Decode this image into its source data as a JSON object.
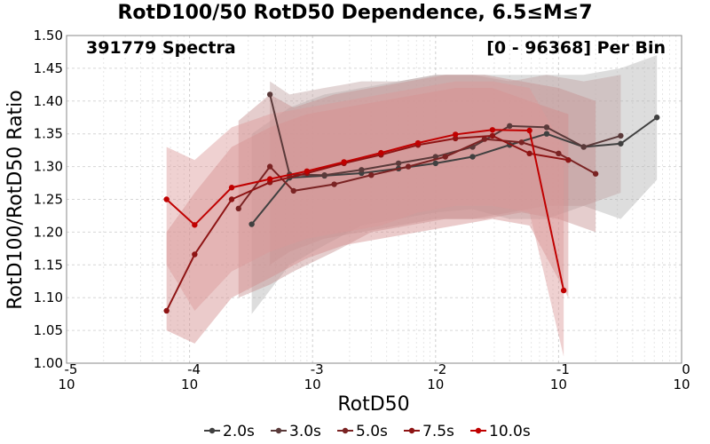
{
  "chart_data": {
    "type": "line",
    "title": "RotD100/50 RotD50 Dependence, 6.5≤M≤7",
    "xlabel": "RotD50",
    "ylabel": "RotD100/RotD50 Ratio",
    "x_scale": "log",
    "xlim": [
      1e-05,
      1
    ],
    "ylim": [
      1.0,
      1.5
    ],
    "y_ticks": [
      "1.00",
      "1.05",
      "1.10",
      "1.15",
      "1.20",
      "1.25",
      "1.30",
      "1.35",
      "1.40",
      "1.45",
      "1.50"
    ],
    "x_ticks": [
      {
        "value": 1e-05,
        "base": "10",
        "exp": "-5"
      },
      {
        "value": 0.0001,
        "base": "10",
        "exp": "-4"
      },
      {
        "value": 0.001,
        "base": "10",
        "exp": "-3"
      },
      {
        "value": 0.01,
        "base": "10",
        "exp": "-2"
      },
      {
        "value": 0.1,
        "base": "10",
        "exp": "-1"
      },
      {
        "value": 1,
        "base": "10",
        "exp": "0"
      }
    ],
    "grid": true,
    "legend_position": "bottom",
    "annotations": {
      "left": "391779 Spectra",
      "right": "[0 - 96368] Per Bin"
    },
    "series": [
      {
        "name": "2.0s",
        "color": "#404040",
        "band_color": "#b4b4b4",
        "x": [
          0.00032,
          0.00065,
          0.00125,
          0.0025,
          0.005,
          0.01,
          0.02,
          0.04,
          0.08,
          0.16,
          0.32,
          0.63
        ],
        "y": [
          1.212,
          1.283,
          1.286,
          1.29,
          1.297,
          1.305,
          1.315,
          1.333,
          1.35,
          1.33,
          1.335,
          1.375
        ],
        "lower": [
          1.075,
          1.15,
          1.18,
          1.21,
          1.22,
          1.23,
          1.235,
          1.22,
          1.22,
          1.24,
          1.22,
          1.28
        ],
        "upper": [
          1.35,
          1.39,
          1.41,
          1.42,
          1.43,
          1.44,
          1.44,
          1.44,
          1.44,
          1.44,
          1.45,
          1.47
        ]
      },
      {
        "name": "3.0s",
        "color": "#5a3a3a",
        "band_color": "#c0a4a4",
        "x": [
          0.00045,
          0.00065,
          0.00125,
          0.0025,
          0.005,
          0.01,
          0.02,
          0.04,
          0.08,
          0.16,
          0.32
        ],
        "y": [
          1.41,
          1.288,
          1.287,
          1.295,
          1.305,
          1.315,
          1.33,
          1.362,
          1.36,
          1.33,
          1.347
        ],
        "lower": [
          1.15,
          1.17,
          1.19,
          1.2,
          1.21,
          1.22,
          1.22,
          1.23,
          1.24,
          1.24,
          1.26
        ],
        "upper": [
          1.43,
          1.41,
          1.42,
          1.43,
          1.43,
          1.44,
          1.44,
          1.43,
          1.44,
          1.43,
          1.44
        ]
      },
      {
        "name": "5.0s",
        "color": "#7a2323",
        "band_color": "#c69090",
        "x": [
          0.00025,
          0.00045,
          0.0007,
          0.0015,
          0.003,
          0.006,
          0.012,
          0.025,
          0.05,
          0.1,
          0.2
        ],
        "y": [
          1.236,
          1.3,
          1.263,
          1.273,
          1.287,
          1.3,
          1.315,
          1.342,
          1.337,
          1.32,
          1.289
        ],
        "lower": [
          1.1,
          1.12,
          1.14,
          1.17,
          1.2,
          1.21,
          1.22,
          1.22,
          1.23,
          1.22,
          1.2
        ],
        "upper": [
          1.37,
          1.41,
          1.39,
          1.41,
          1.42,
          1.43,
          1.44,
          1.44,
          1.43,
          1.42,
          1.4
        ]
      },
      {
        "name": "7.5s",
        "color": "#8e1414",
        "band_color": "#d28c8c",
        "x": [
          6.5e-05,
          0.00011,
          0.00022,
          0.00045,
          0.0009,
          0.0018,
          0.0036,
          0.0072,
          0.0145,
          0.029,
          0.058,
          0.12
        ],
        "y": [
          1.08,
          1.166,
          1.25,
          1.276,
          1.29,
          1.305,
          1.318,
          1.333,
          1.343,
          1.347,
          1.32,
          1.31
        ],
        "lower": [
          1.05,
          1.03,
          1.1,
          1.13,
          1.16,
          1.18,
          1.19,
          1.2,
          1.21,
          1.22,
          1.21,
          1.1
        ],
        "upper": [
          1.2,
          1.26,
          1.33,
          1.36,
          1.38,
          1.39,
          1.4,
          1.41,
          1.42,
          1.42,
          1.4,
          1.38
        ]
      },
      {
        "name": "10.0s",
        "color": "#c00000",
        "band_color": "#dc9999",
        "x": [
          6.5e-05,
          0.00011,
          0.00022,
          0.00045,
          0.0009,
          0.0018,
          0.0036,
          0.0072,
          0.0145,
          0.029,
          0.058,
          0.11
        ],
        "y": [
          1.25,
          1.211,
          1.268,
          1.281,
          1.293,
          1.307,
          1.321,
          1.336,
          1.349,
          1.356,
          1.355,
          1.111
        ],
        "lower": [
          1.15,
          1.08,
          1.14,
          1.17,
          1.19,
          1.2,
          1.21,
          1.23,
          1.24,
          1.24,
          1.23,
          1.01
        ],
        "upper": [
          1.33,
          1.31,
          1.36,
          1.38,
          1.39,
          1.4,
          1.41,
          1.42,
          1.43,
          1.43,
          1.42,
          1.33
        ]
      }
    ]
  }
}
